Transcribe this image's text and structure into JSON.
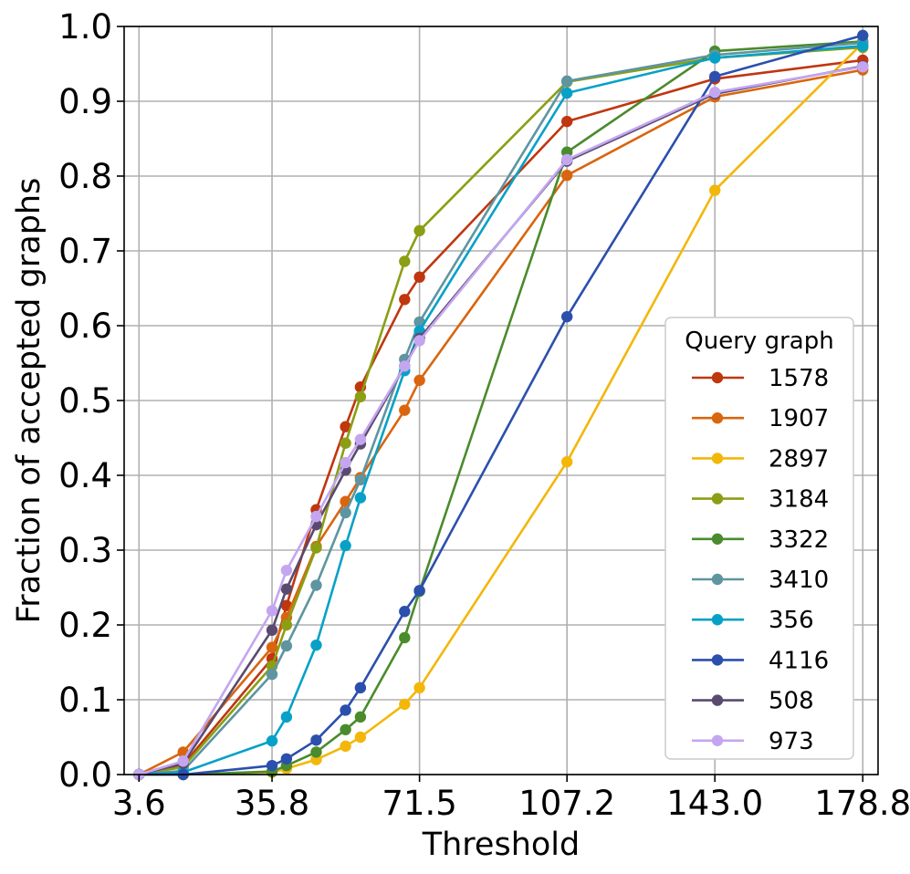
{
  "chart_data": {
    "type": "line",
    "title": "",
    "xlabel": "Threshold",
    "ylabel": "Fraction of accepted graphs",
    "xlim": [
      0,
      182.5
    ],
    "ylim": [
      0.0,
      1.0
    ],
    "xticks": [
      3.6,
      35.8,
      71.5,
      107.2,
      143.0,
      178.8
    ],
    "xtick_labels": [
      "3.6",
      "35.8",
      "71.5",
      "107.2",
      "143.0",
      "178.8"
    ],
    "yticks": [
      0.0,
      0.1,
      0.2,
      0.3,
      0.4,
      0.5,
      0.6,
      0.7,
      0.8,
      0.9,
      1.0
    ],
    "ytick_labels": [
      "0.0",
      "0.1",
      "0.2",
      "0.3",
      "0.4",
      "0.5",
      "0.6",
      "0.7",
      "0.8",
      "0.9",
      "1.0"
    ],
    "grid": true,
    "legend_title": "Query graph",
    "legend_position": "lower-right",
    "x": [
      3.6,
      14.3,
      35.8,
      39.3,
      46.5,
      53.6,
      57.2,
      67.9,
      71.5,
      107.2,
      143.0,
      178.8
    ],
    "series": [
      {
        "name": "1578",
        "color": "#c0360f",
        "values": [
          0.0,
          0.013,
          0.155,
          0.226,
          0.354,
          0.465,
          0.518,
          0.635,
          0.665,
          0.873,
          0.93,
          0.955
        ]
      },
      {
        "name": "1907",
        "color": "#d9650e",
        "values": [
          0.0,
          0.03,
          0.17,
          0.21,
          0.305,
          0.365,
          0.397,
          0.487,
          0.527,
          0.801,
          0.906,
          0.942
        ]
      },
      {
        "name": "2897",
        "color": "#f3b70a",
        "values": [
          0.0,
          0.0,
          0.003,
          0.008,
          0.02,
          0.038,
          0.05,
          0.094,
          0.116,
          0.418,
          0.781,
          0.978
        ]
      },
      {
        "name": "3184",
        "color": "#8b9e14",
        "values": [
          0.0,
          0.01,
          0.145,
          0.2,
          0.303,
          0.443,
          0.505,
          0.686,
          0.727,
          0.926,
          0.958,
          0.972
        ]
      },
      {
        "name": "3322",
        "color": "#4a8b2c",
        "values": [
          0.0,
          0.0,
          0.004,
          0.012,
          0.03,
          0.06,
          0.077,
          0.183,
          0.245,
          0.832,
          0.967,
          0.98
        ]
      },
      {
        "name": "3410",
        "color": "#5e95a0",
        "values": [
          0.0,
          0.005,
          0.134,
          0.172,
          0.253,
          0.35,
          0.394,
          0.555,
          0.605,
          0.927,
          0.962,
          0.978
        ]
      },
      {
        "name": "356",
        "color": "#07a1c7",
        "values": [
          0.0,
          0.003,
          0.045,
          0.077,
          0.173,
          0.306,
          0.37,
          0.54,
          0.593,
          0.911,
          0.958,
          0.974
        ]
      },
      {
        "name": "4116",
        "color": "#2b4fad",
        "values": [
          0.0,
          0.0,
          0.012,
          0.021,
          0.046,
          0.086,
          0.116,
          0.218,
          0.246,
          0.612,
          0.933,
          0.988
        ]
      },
      {
        "name": "508",
        "color": "#5a4a70",
        "values": [
          0.0,
          0.015,
          0.193,
          0.248,
          0.334,
          0.407,
          0.442,
          0.546,
          0.583,
          0.82,
          0.91,
          0.947
        ]
      },
      {
        "name": "973",
        "color": "#c4a6f0",
        "values": [
          0.0,
          0.018,
          0.219,
          0.273,
          0.345,
          0.417,
          0.448,
          0.546,
          0.58,
          0.822,
          0.912,
          0.946
        ]
      }
    ]
  }
}
